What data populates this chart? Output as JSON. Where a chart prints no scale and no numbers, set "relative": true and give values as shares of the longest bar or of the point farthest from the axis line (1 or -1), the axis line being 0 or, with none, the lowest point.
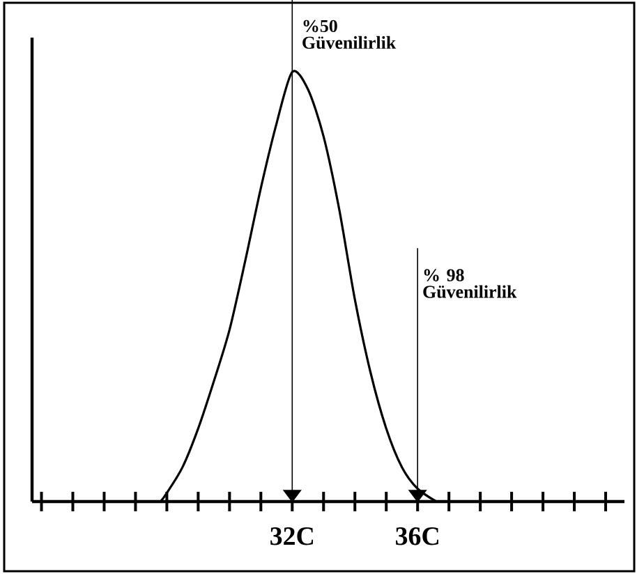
{
  "chart_data": {
    "type": "line",
    "relative": true,
    "color": "#000000",
    "x": [
      27.8,
      28.0,
      28.5,
      29.0,
      29.5,
      30.0,
      30.5,
      31.0,
      31.5,
      32.0,
      32.5,
      33.0,
      33.5,
      34.0,
      34.5,
      35.0,
      35.5,
      36.0,
      36.6
    ],
    "values": [
      0,
      0.02,
      0.08,
      0.17,
      0.28,
      0.4,
      0.56,
      0.73,
      0.88,
      1,
      0.96,
      0.85,
      0.68,
      0.47,
      0.3,
      0.17,
      0.08,
      0.03,
      0
    ],
    "xlim": [
      23.7,
      42.6
    ],
    "xticks": [
      {
        "value": 24,
        "label": null
      },
      {
        "value": 25,
        "label": null
      },
      {
        "value": 26,
        "label": null
      },
      {
        "value": 27,
        "label": null
      },
      {
        "value": 28,
        "label": null
      },
      {
        "value": 29,
        "label": null
      },
      {
        "value": 30,
        "label": null
      },
      {
        "value": 31,
        "label": null
      },
      {
        "value": 32,
        "label": "32C"
      },
      {
        "value": 33,
        "label": null
      },
      {
        "value": 34,
        "label": null
      },
      {
        "value": 35,
        "label": null
      },
      {
        "value": 36,
        "label": "36C"
      },
      {
        "value": 37,
        "label": null
      },
      {
        "value": 38,
        "label": null
      },
      {
        "value": 39,
        "label": null
      },
      {
        "value": 40,
        "label": null
      },
      {
        "value": 41,
        "label": null
      },
      {
        "value": 42,
        "label": null
      }
    ],
    "ref_lines": [
      {
        "axis": "x",
        "value": 32,
        "label": "%50 Güvenilirlik"
      },
      {
        "axis": "x",
        "value": 36,
        "label": "% 98 Güvenilirlik"
      }
    ],
    "tick_labels": "x",
    "marker": "none",
    "line_style": "solid"
  }
}
